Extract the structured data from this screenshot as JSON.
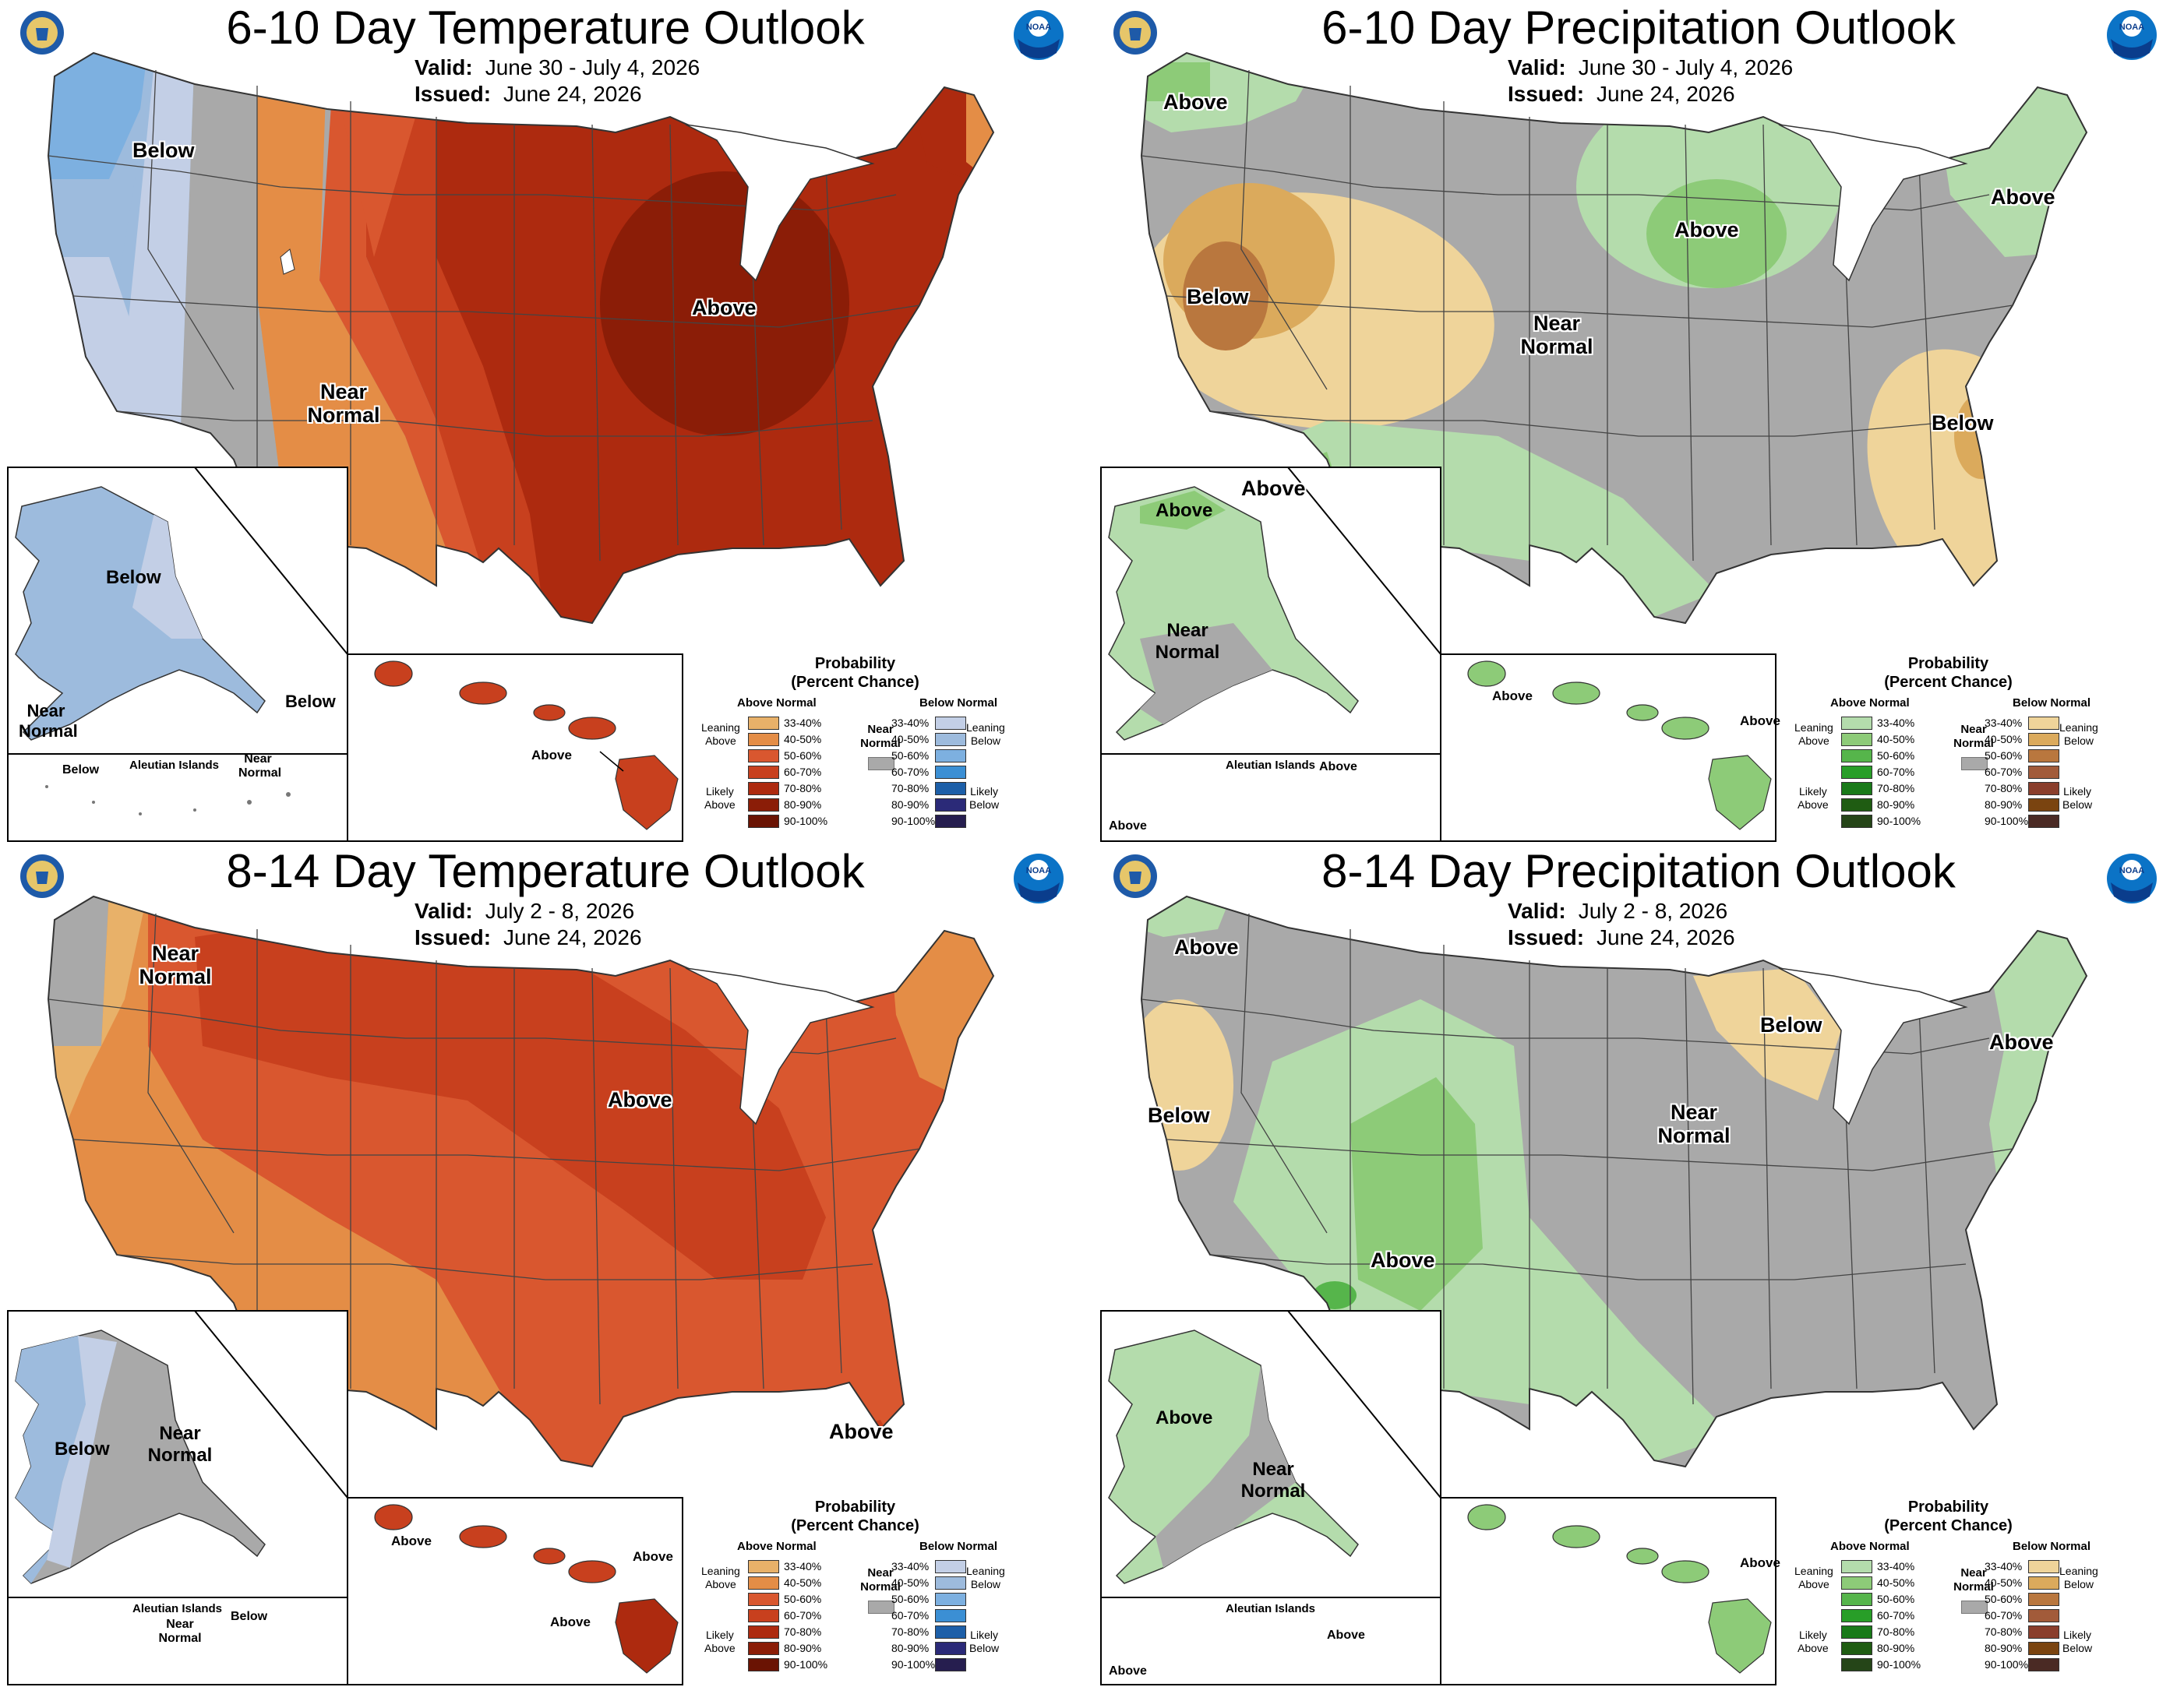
{
  "labels": {
    "valid": "Valid:",
    "issued": "Issued:",
    "aleutian": "Aleutian Islands"
  },
  "legend": {
    "title_line1": "Probability",
    "title_line2": "(Percent Chance)",
    "above_header": "Above Normal",
    "below_header": "Below Normal",
    "near_line1": "Near",
    "near_line2": "Normal",
    "percents": [
      "33-40%",
      "40-50%",
      "50-60%",
      "60-70%",
      "70-80%",
      "80-90%",
      "90-100%"
    ],
    "temp_left": {
      "leaning_1": "Leaning",
      "leaning_2": "Above",
      "likely_1": "Likely",
      "likely_2": "Above"
    },
    "temp_right": {
      "leaning_1": "Leaning",
      "leaning_2": "Below",
      "likely_1": "Likely",
      "likely_2": "Below"
    },
    "temp_above_colors": [
      "#e8b169",
      "#e48d46",
      "#d9572f",
      "#c8401e",
      "#ad2a0f",
      "#8b1d07",
      "#6a1303"
    ],
    "temp_below_colors": [
      "#c3cfe6",
      "#9dbbdd",
      "#7db0e0",
      "#3b8fd4",
      "#1d5fa8",
      "#2b2a78",
      "#261e4f"
    ],
    "prcp_above_colors": [
      "#b4dcac",
      "#8dcb78",
      "#56b54b",
      "#289e28",
      "#197a19",
      "#1f5c12",
      "#254518"
    ],
    "prcp_below_colors": [
      "#efd49a",
      "#dbaa5c",
      "#b9773e",
      "#a25b3a",
      "#8a3e2c",
      "#7a4410",
      "#4a2a24"
    ]
  },
  "panels": [
    {
      "title": "6-10 Day Temperature Outlook",
      "valid": "June 30 - July 4, 2026",
      "issued": "June 24, 2026",
      "regions": [
        {
          "text": "Below"
        },
        {
          "text": "Near Normal"
        },
        {
          "text": "Above"
        }
      ],
      "inset_labels": [
        {
          "text": "Below"
        },
        {
          "text": "Near Normal"
        },
        {
          "text": "Below"
        },
        {
          "text": "Above"
        },
        {
          "text": "Below"
        },
        {
          "text": "Near Normal"
        }
      ]
    },
    {
      "title": "6-10 Day Precipitation Outlook",
      "valid": "June 30 - July 4, 2026",
      "issued": "June 24, 2026",
      "regions": [
        {
          "text": "Above"
        },
        {
          "text": "Below"
        },
        {
          "text": "Above"
        },
        {
          "text": "Above"
        },
        {
          "text": "Near Normal"
        },
        {
          "text": "Above"
        },
        {
          "text": "Below"
        }
      ],
      "inset_labels": [
        {
          "text": "Above"
        },
        {
          "text": "Near Normal"
        },
        {
          "text": "Above"
        },
        {
          "text": "Above"
        },
        {
          "text": "Above"
        },
        {
          "text": "Above"
        }
      ]
    },
    {
      "title": "8-14 Day Temperature Outlook",
      "valid": "July 2 - 8, 2026",
      "issued": "June 24, 2026",
      "regions": [
        {
          "text": "Near Normal"
        },
        {
          "text": "Above"
        },
        {
          "text": "Above"
        }
      ],
      "inset_labels": [
        {
          "text": "Below"
        },
        {
          "text": "Near Normal"
        },
        {
          "text": "Above"
        },
        {
          "text": "Above"
        },
        {
          "text": "Above"
        },
        {
          "text": "Near Normal"
        },
        {
          "text": "Below"
        }
      ]
    },
    {
      "title": "8-14 Day Precipitation Outlook",
      "valid": "July 2 - 8, 2026",
      "issued": "June 24, 2026",
      "regions": [
        {
          "text": "Above"
        },
        {
          "text": "Below"
        },
        {
          "text": "Below"
        },
        {
          "text": "Above"
        },
        {
          "text": "Near Normal"
        },
        {
          "text": "Above"
        }
      ],
      "inset_labels": [
        {
          "text": "Above"
        },
        {
          "text": "Near Normal"
        },
        {
          "text": "Above"
        },
        {
          "text": "Above"
        },
        {
          "text": "Above"
        }
      ]
    }
  ]
}
